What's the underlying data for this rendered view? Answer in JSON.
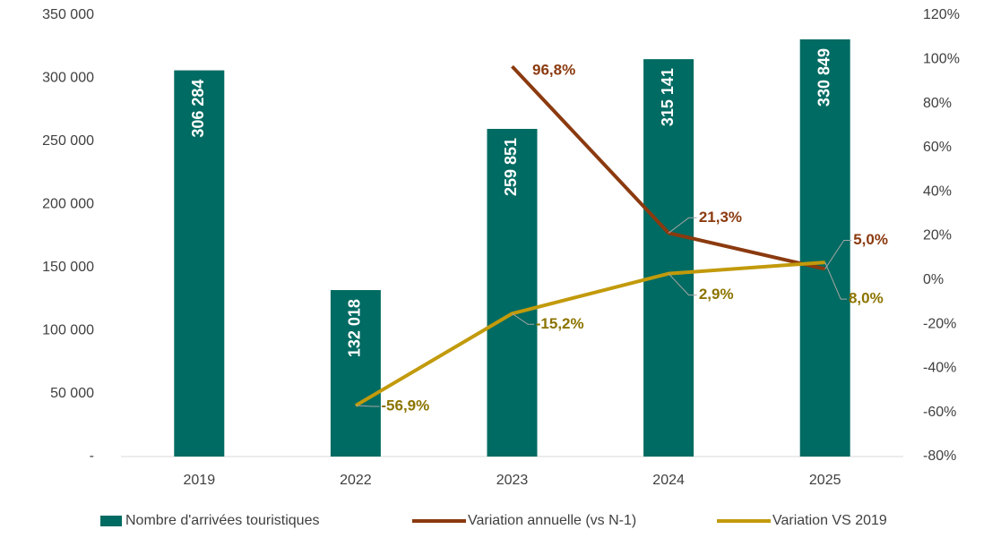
{
  "chart_data": {
    "type": "combo",
    "categories": [
      "2019",
      "2022",
      "2023",
      "2024",
      "2025"
    ],
    "series": [
      {
        "name": "Nombre d'arrivées touristiques",
        "type": "bar",
        "color": "#006b62",
        "values": [
          306284,
          132018,
          259851,
          315141,
          330849
        ],
        "value_labels": [
          "306 284",
          "132 018",
          "259 851",
          "315 141",
          "330 849"
        ]
      },
      {
        "name": "Variation annuelle (vs N-1)",
        "type": "line",
        "axis": "y2",
        "color": "#8b3a0f",
        "values": [
          null,
          null,
          96.8,
          21.3,
          5.0
        ],
        "value_labels": [
          null,
          null,
          "96,8%",
          "21,3%",
          "5,0%"
        ]
      },
      {
        "name": "Variation VS 2019",
        "type": "line",
        "axis": "y2",
        "color": "#c29a0b",
        "values": [
          null,
          -56.9,
          -15.2,
          2.9,
          8.0
        ],
        "value_labels": [
          null,
          "-56,9%",
          "-15,2%",
          "2,9%",
          "8,0%"
        ]
      }
    ],
    "ylim": [
      0,
      350000
    ],
    "yticks": [
      {
        "value": 0,
        "label": "-"
      },
      {
        "value": 50000,
        "label": "50 000"
      },
      {
        "value": 100000,
        "label": "100 000"
      },
      {
        "value": 150000,
        "label": "150 000"
      },
      {
        "value": 200000,
        "label": "200 000"
      },
      {
        "value": 250000,
        "label": "250 000"
      },
      {
        "value": 300000,
        "label": "300 000"
      },
      {
        "value": 350000,
        "label": "350 000"
      }
    ],
    "y2lim": [
      -80,
      120
    ],
    "y2ticks": [
      {
        "value": -80,
        "label": "-80%"
      },
      {
        "value": -60,
        "label": "-60%"
      },
      {
        "value": -40,
        "label": "-40%"
      },
      {
        "value": -20,
        "label": "-20%"
      },
      {
        "value": 0,
        "label": "0%"
      },
      {
        "value": 20,
        "label": "20%"
      },
      {
        "value": 40,
        "label": "40%"
      },
      {
        "value": 60,
        "label": "60%"
      },
      {
        "value": 80,
        "label": "80%"
      },
      {
        "value": 100,
        "label": "100%"
      },
      {
        "value": 120,
        "label": "120%"
      }
    ],
    "grid": false,
    "legend": "bottom"
  }
}
